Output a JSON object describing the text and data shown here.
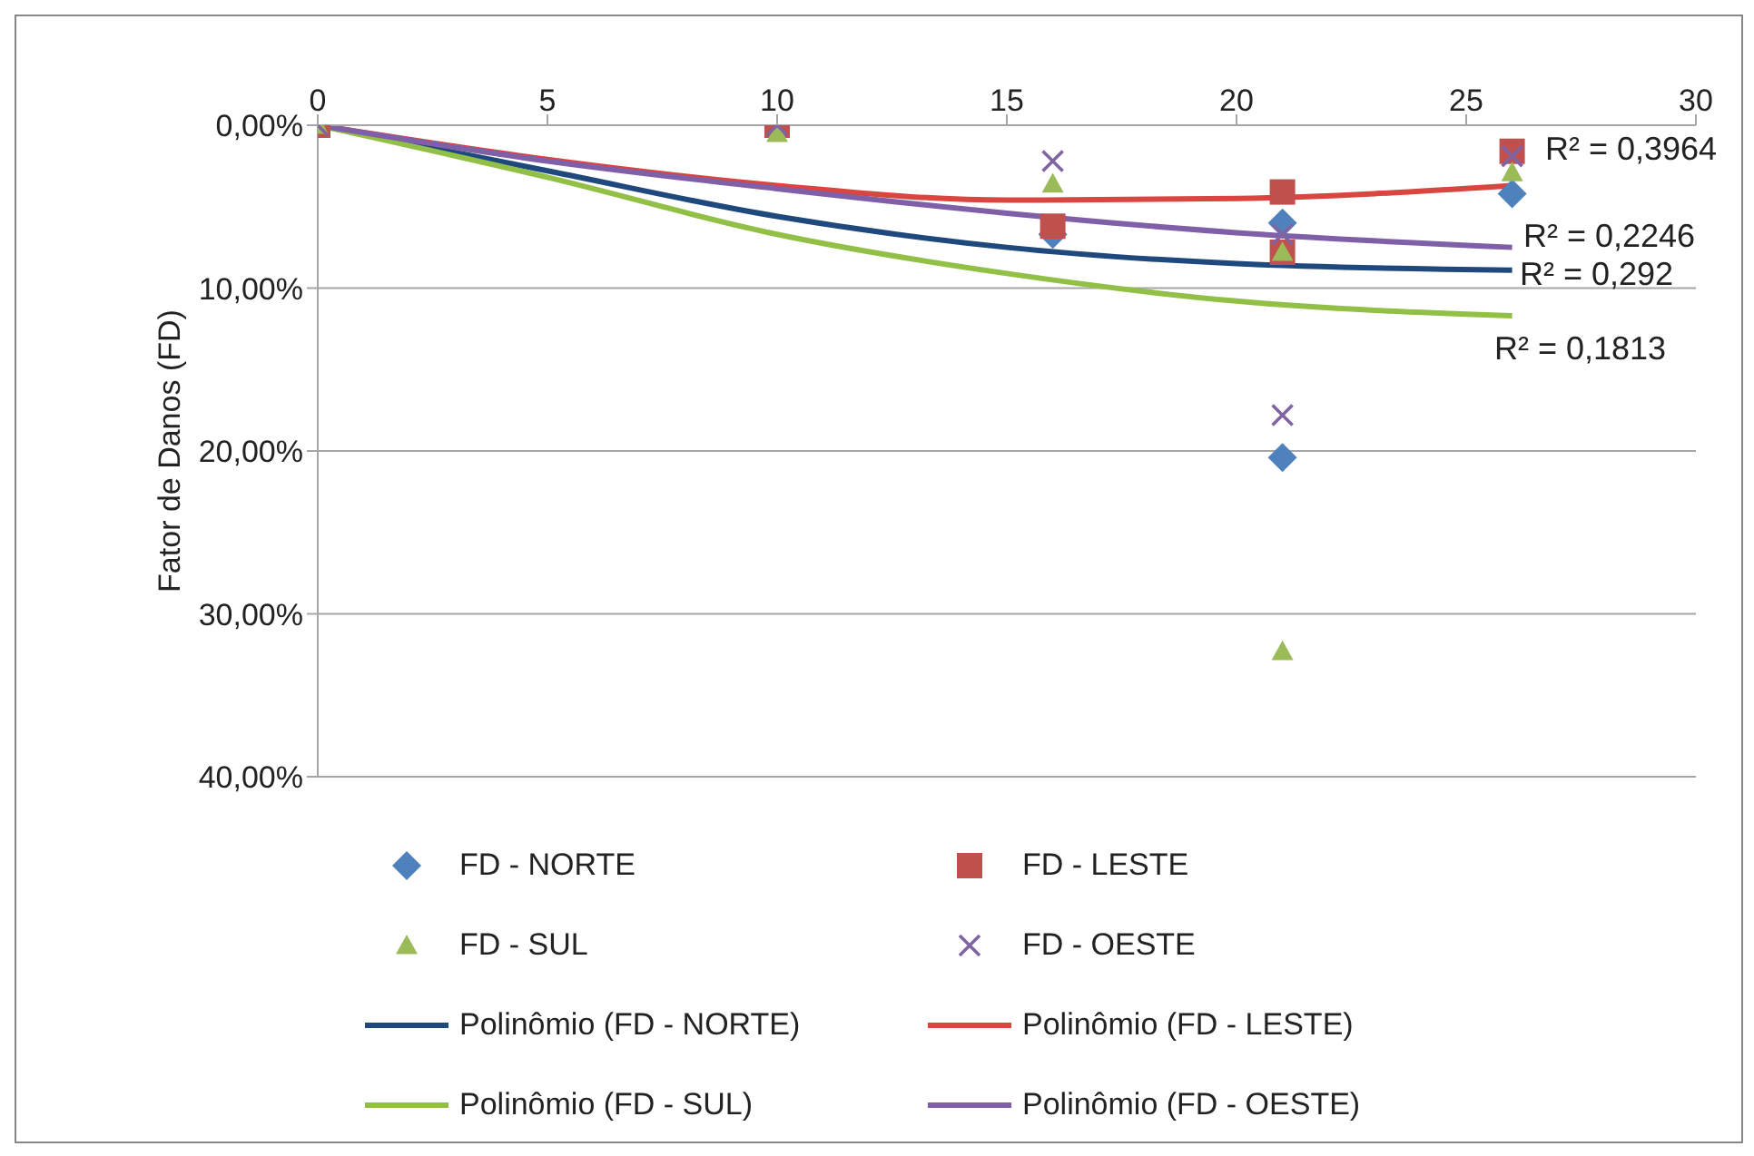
{
  "chart_data": {
    "type": "scatter",
    "ylabel": "Fator de Danos (FD)",
    "xlim": [
      0,
      30
    ],
    "xticks": [
      0,
      5,
      10,
      15,
      20,
      25,
      30
    ],
    "ylim": [
      40,
      0
    ],
    "yticks": [
      {
        "value": 0,
        "label": "0,00%"
      },
      {
        "value": 10,
        "label": "10,00%"
      },
      {
        "value": 20,
        "label": "20,00%"
      },
      {
        "value": 30,
        "label": "30,00%"
      },
      {
        "value": 40,
        "label": "40,00%"
      }
    ],
    "grid": "y",
    "legend": "bottom",
    "series": [
      {
        "name": "FD - NORTE",
        "marker": "diamond",
        "color": "#4f81bd",
        "x": [
          16,
          21,
          21,
          26
        ],
        "values": [
          6.7,
          6.0,
          20.4,
          4.2
        ]
      },
      {
        "name": "FD - LESTE",
        "marker": "square",
        "color": "#c0504d",
        "x": [
          0,
          10,
          16,
          21,
          21,
          26
        ],
        "values": [
          0,
          0,
          6.2,
          4.1,
          7.8,
          1.6
        ]
      },
      {
        "name": "FD - SUL",
        "marker": "triangle",
        "color": "#9bbb59",
        "x": [
          0,
          10,
          16,
          21,
          21,
          26
        ],
        "values": [
          0,
          0.5,
          3.6,
          7.8,
          32.3,
          2.9
        ]
      },
      {
        "name": "FD - OESTE",
        "marker": "cross",
        "color": "#8064a2",
        "x": [
          0,
          10,
          16,
          21,
          21,
          26
        ],
        "values": [
          0,
          0,
          2.2,
          6.7,
          17.8,
          1.9
        ]
      },
      {
        "name": "Polinômio (FD - NORTE)",
        "type": "line",
        "marker": "none",
        "color": "#1f497d",
        "x": [
          0,
          5,
          10,
          15,
          20,
          26
        ],
        "values": [
          0,
          2.8,
          5.6,
          7.5,
          8.5,
          8.9
        ]
      },
      {
        "name": "Polinômio (FD - LESTE)",
        "type": "line",
        "marker": "none",
        "color": "#d9453f",
        "x": [
          0,
          5,
          10,
          15,
          20,
          26
        ],
        "values": [
          0,
          2.1,
          3.7,
          4.6,
          4.5,
          3.7
        ]
      },
      {
        "name": "Polinômio (FD - SUL)",
        "type": "line",
        "marker": "none",
        "color": "#92c047",
        "x": [
          0,
          5,
          10,
          15,
          20,
          26
        ],
        "values": [
          0,
          3.2,
          6.7,
          9.1,
          10.8,
          11.7
        ]
      },
      {
        "name": "Polinômio (FD - OESTE)",
        "type": "line",
        "marker": "none",
        "color": "#7f5fa8",
        "x": [
          0,
          5,
          10,
          15,
          20,
          26
        ],
        "values": [
          0,
          2.2,
          3.9,
          5.4,
          6.6,
          7.5
        ]
      }
    ],
    "annotations": [
      "R² = 0,3964",
      "R² = 0,2246",
      "R² = 0,292",
      "R² = 0,1813"
    ]
  }
}
